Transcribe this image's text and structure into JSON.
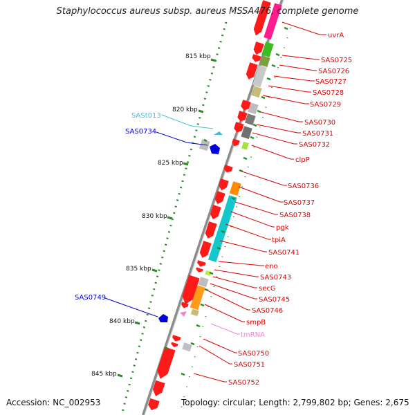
{
  "title": "Staphylococcus aureus subsp. aureus MSSA476, complete genome",
  "accession": "Accession: NC_002953",
  "topology": "Topology: circular; Length: 2,799,802 bp; Genes: 2,675",
  "colors": {
    "gene_label": "#dd0000",
    "rna_label": "#44bbdd",
    "tmrna_label": "#e68ad0",
    "reverse_label": "#0000cc",
    "scale_tick": "#2a8a2a"
  },
  "scale_labels": [
    "815 kbp",
    "820 kbp",
    "825 kbp",
    "830 kbp",
    "835 kbp",
    "840 kbp",
    "845 kbp"
  ],
  "gene_labels": [
    "uvrA",
    "SAS0725",
    "SAS0726",
    "SAS0727",
    "SAS0728",
    "SAS0729",
    "SAS0730",
    "SAS0731",
    "SAS0732",
    "clpP",
    "SAS0736",
    "SAS0737",
    "SAS0738",
    "pgk",
    "tpiA",
    "SAS0741",
    "eno",
    "SAS0743",
    "secG",
    "SAS0745",
    "SAS0746",
    "smpB",
    "tmRNA",
    "SAS0750",
    "SAS0751",
    "SAS0752"
  ],
  "left_labels": [
    "SASt013",
    "SAS0734",
    "SAS0749"
  ]
}
